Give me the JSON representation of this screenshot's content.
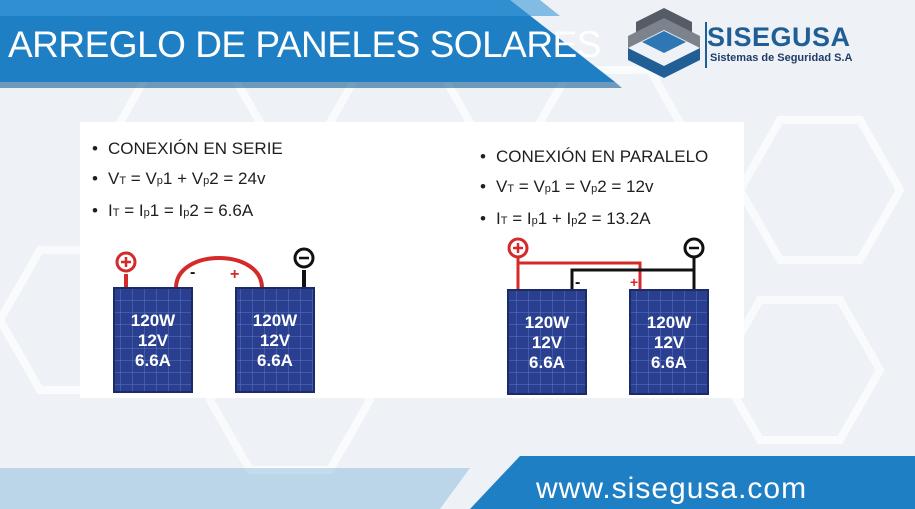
{
  "header": {
    "title": "ARREGLO DE PANELES SOLARES",
    "logo_name": "SISEGUSA",
    "logo_subtitle": "Sistemas de Seguridad S.A"
  },
  "series": {
    "heading": "CONEXIÓN EN SERIE",
    "voltage_formula": {
      "v": "V",
      "t": "T",
      "eq1": " = V",
      "p1": "p",
      "one": "1 + V",
      "p2": "p",
      "two": "2 = 24v"
    },
    "current_formula": {
      "i": "I",
      "t": "T",
      "eq1": " = I",
      "p1": "p",
      "one": "1 = I",
      "p2": "p",
      "two": "2 = 6.6A"
    },
    "panels": [
      {
        "watts": "120W",
        "volts": "12V",
        "amps": "6.6A"
      },
      {
        "watts": "120W",
        "volts": "12V",
        "amps": "6.6A"
      }
    ],
    "minus": "-",
    "plus": "+"
  },
  "parallel": {
    "heading": "CONEXIÓN EN PARALELO",
    "voltage_formula": {
      "v": "V",
      "t": "T",
      "eq1": " = V",
      "p1": "p",
      "one": "1 = V",
      "p2": "p",
      "two": "2 = 12v"
    },
    "current_formula": {
      "i": "I",
      "t": "T",
      "eq1": " = I",
      "p1": "p",
      "one": "1 + I",
      "p2": "p",
      "two": "2 = 13.2A"
    },
    "panels": [
      {
        "watts": "120W",
        "volts": "12V",
        "amps": "6.6A"
      },
      {
        "watts": "120W",
        "volts": "12V",
        "amps": "6.6A"
      }
    ],
    "minus": "-",
    "plus": "+"
  },
  "footer": {
    "url": "www.sisegusa.com"
  },
  "colors": {
    "blue": "#1f7fc4",
    "dark_blue": "#1f5f96",
    "panel": "#2a3f8f",
    "red": "#d42a2a"
  }
}
